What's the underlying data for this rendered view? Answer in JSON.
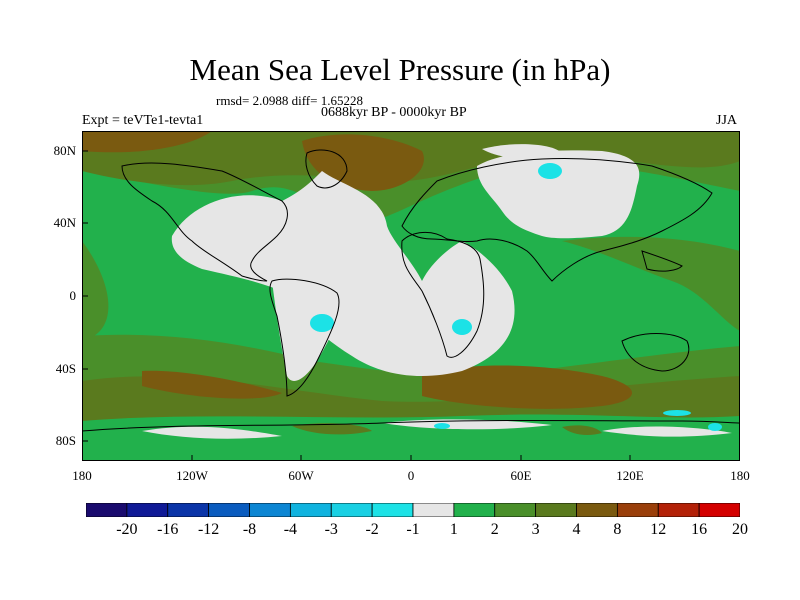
{
  "title": "Mean Sea Level Pressure (in hPa)",
  "stats_line": "rmsd= 2.0988 diff= 1.65228",
  "period_line": "0688kyr BP - 0000kyr BP",
  "experiment": "Expt = teVTe1-tevta1",
  "season": "JJA",
  "map": {
    "projection": "cylindrical equidistant",
    "lat_ticks": [
      "80N",
      "40N",
      "0",
      "40S",
      "80S"
    ],
    "lon_ticks": [
      "180",
      "120W",
      "60W",
      "0",
      "60E",
      "120E",
      "180"
    ],
    "background_value_color": "#2fb04a"
  },
  "colorbar": {
    "labels": [
      "-20",
      "-16",
      "-12",
      "-8",
      "-4",
      "-3",
      "-2",
      "-1",
      "1",
      "2",
      "3",
      "4",
      "8",
      "12",
      "16",
      "20"
    ],
    "colors": [
      "#1a0a6e",
      "#101a96",
      "#0b35a8",
      "#0a5cbf",
      "#0d86d3",
      "#10b3df",
      "#19d0e3",
      "#1ce2e6",
      "#e6e6e6",
      "#22b14c",
      "#4a8f2a",
      "#5a7a1e",
      "#7a5a10",
      "#9a3f0a",
      "#b32108",
      "#d40000"
    ]
  }
}
